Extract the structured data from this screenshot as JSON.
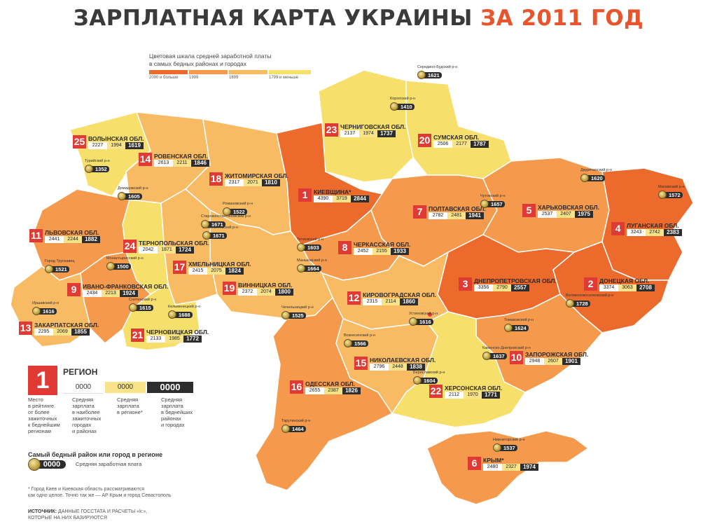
{
  "title": {
    "main": "ЗАРПЛАТНАЯ КАРТА УКРАИНЫ",
    "accent": "ЗА 2011 ГОД"
  },
  "colors": {
    "c2000": "#ec6a2c",
    "c1999": "#f59a4d",
    "c1899": "#f8bb63",
    "c1799": "#f6df6a",
    "rank": "#e03a35",
    "dark": "#2d2d2d"
  },
  "scale": {
    "title_line1": "Цветовая шкала средней заработной платы",
    "title_line2": "в самых бедных районах и городах",
    "labels": [
      "2000 и больше",
      "1999",
      "1899",
      "1799 и меньше"
    ]
  },
  "regions": [
    {
      "rank": "1",
      "name": "КИЕВЩИНА*",
      "v1": "4390",
      "v2": "3719",
      "v3": "2844"
    },
    {
      "rank": "2",
      "name": "ДОНЕЦКАЯ ОБЛ.",
      "v1": "3374",
      "v2": "3063",
      "v3": "2708"
    },
    {
      "rank": "3",
      "name": "ДНЕПРОПЕТРОВСКАЯ ОБЛ.",
      "v1": "3356",
      "v2": "2790",
      "v3": "2557"
    },
    {
      "rank": "4",
      "name": "ЛУГАНСКАЯ ОБЛ.",
      "v1": "3243",
      "v2": "2742",
      "v3": "2383"
    },
    {
      "rank": "5",
      "name": "ХАРЬКОВСКАЯ ОБЛ.",
      "v1": "2537",
      "v2": "2407",
      "v3": "1975"
    },
    {
      "rank": "6",
      "name": "КРЫМ*",
      "v1": "2480",
      "v2": "2327",
      "v3": "1974"
    },
    {
      "rank": "7",
      "name": "ПОЛТАВСКАЯ ОБЛ.",
      "v1": "2782",
      "v2": "2481",
      "v3": "1941"
    },
    {
      "rank": "8",
      "name": "ЧЕРКАССКАЯ ОБЛ.",
      "v1": "2452",
      "v2": "2155",
      "v3": "1933"
    },
    {
      "rank": "9",
      "name": "ИВАНО-ФРАНКОВСКАЯ ОБЛ.",
      "v1": "2434",
      "v2": "2213",
      "v3": "1924"
    },
    {
      "rank": "10",
      "name": "ЗАПОРОЖСКАЯ ОБЛ.",
      "v1": "2948",
      "v2": "2607",
      "v3": "1901"
    },
    {
      "rank": "11",
      "name": "ЛЬВОВСКАЯ ОБЛ.",
      "v1": "2441",
      "v2": "2244",
      "v3": "1882"
    },
    {
      "rank": "12",
      "name": "КИРОВОГРАДСКАЯ ОБЛ.",
      "v1": "2315",
      "v2": "2114",
      "v3": "1860"
    },
    {
      "rank": "13",
      "name": "ЗАКАРПАТСКАЯ ОБЛ.",
      "v1": "2295",
      "v2": "2069",
      "v3": "1855"
    },
    {
      "rank": "14",
      "name": "РОВЕНСКАЯ ОБЛ.",
      "v1": "2613",
      "v2": "2211",
      "v3": "1846"
    },
    {
      "rank": "15",
      "name": "НИКОЛАЕВСКАЯ ОБЛ.",
      "v1": "2796",
      "v2": "2448",
      "v3": "1838"
    },
    {
      "rank": "16",
      "name": "ОДЕССКАЯ ОБЛ.",
      "v1": "2655",
      "v2": "2387",
      "v3": "1826"
    },
    {
      "rank": "17",
      "name": "ХМЕЛЬНИЦКАЯ ОБЛ.",
      "v1": "2415",
      "v2": "2075",
      "v3": "1824"
    },
    {
      "rank": "18",
      "name": "ЖИТОМИРСКАЯ ОБЛ.",
      "v1": "2317",
      "v2": "2071",
      "v3": "1810"
    },
    {
      "rank": "19",
      "name": "ВИННИЦКАЯ ОБЛ.",
      "v1": "2372",
      "v2": "2074",
      "v3": "1800"
    },
    {
      "rank": "20",
      "name": "СУМСКАЯ ОБЛ.",
      "v1": "2506",
      "v2": "2177",
      "v3": "1787"
    },
    {
      "rank": "21",
      "name": "ЧЕРНОВИЦКАЯ ОБЛ.",
      "v1": "2133",
      "v2": "1985",
      "v3": "1772"
    },
    {
      "rank": "22",
      "name": "ХЕРСОНСКАЯ ОБЛ.",
      "v1": "2112",
      "v2": "1970",
      "v3": "1771"
    },
    {
      "rank": "23",
      "name": "ЧЕРНИГОВСКАЯ ОБЛ.",
      "v1": "2137",
      "v2": "1974",
      "v3": "1737"
    },
    {
      "rank": "24",
      "name": "ТЕРНОПОЛЬСКАЯ ОБЛ.",
      "v1": "2042",
      "v2": "1871",
      "v3": "1724"
    },
    {
      "rank": "25",
      "name": "ВОЛЫНСКАЯ ОБЛ.",
      "v1": "2227",
      "v2": "1994",
      "v3": "1619"
    }
  ],
  "districts": [
    {
      "name": "Середино-Будский р-н",
      "value": "1621"
    },
    {
      "name": "Коропский р-н",
      "value": "1410"
    },
    {
      "name": "Двуречанский р-н",
      "value": "1620"
    },
    {
      "name": "Милавский р-н",
      "value": "1572"
    },
    {
      "name": "Чутовский р-н",
      "value": "1657"
    },
    {
      "name": "Тетиевский р-н",
      "value": "1603"
    },
    {
      "name": "Маньковский р-н",
      "value": "1664"
    },
    {
      "name": "Турийский р-н",
      "value": "1352"
    },
    {
      "name": "Демидовский р-н",
      "value": "1605"
    },
    {
      "name": "Романовский р-н",
      "value": "1522"
    },
    {
      "name": "Старосинявский р-н",
      "value": "1671"
    },
    {
      "name": "Староконстантиновский р-н",
      "value": "1671"
    },
    {
      "name": "Город Трускавец",
      "value": "1521"
    },
    {
      "name": "Монастырисский р-н",
      "value": "1500"
    },
    {
      "name": "Снятинский р-н",
      "value": "1615"
    },
    {
      "name": "Иршавский р-н",
      "value": "1616"
    },
    {
      "name": "Кельменецкий р-н",
      "value": "1688"
    },
    {
      "name": "Чечельницкий р-н",
      "value": "1525"
    },
    {
      "name": "Устиновский р-н",
      "value": "1616"
    },
    {
      "name": "Великоновоселковский р-н",
      "value": "1728"
    },
    {
      "name": "Томаковский р-н",
      "value": "1624"
    },
    {
      "name": "Каменско-Днепровский р-н",
      "value": "1637"
    },
    {
      "name": "Вознесенский р-н",
      "value": "1566"
    },
    {
      "name": "Бериславский р-н",
      "value": "1604"
    },
    {
      "name": "Тарутинский р-н",
      "value": "1464"
    },
    {
      "name": "Нижнегорский р-н",
      "value": "1537"
    }
  ],
  "legend": {
    "rank": "1",
    "title": "РЕГИОН",
    "box1": "0000",
    "box2": "0000",
    "box3": "0000",
    "desc1": "Место\nв рейтинге\nот более\nзажиточных\nк беднейшим\nрегионам",
    "desc2": "Средняя\nзарплата\nв наиболее\nзажиточных\nгородах\nи районах",
    "desc3": "Средняя\nзарплата\nв регионе*",
    "desc4": "Средняя\nзарплата\nв беднейших\nрайонах\nи городах",
    "poorest_title": "Самый бедный район или город в регионе",
    "coin_value": "0000",
    "coin_label": "Средняя заработная плата"
  },
  "footnote": "* Город Киев и Киевская область рассматриваются\nкак одно целое. Точно так же — АР Крым и город Севастополь",
  "source": {
    "label": "ИСТОЧНИК:",
    "text": "ДАННЫЕ ГОССТАТА И РАСЧЕТЫ «k:»,\nКОТОРЫЕ НА НИХ БАЗИРУЮТСЯ"
  }
}
